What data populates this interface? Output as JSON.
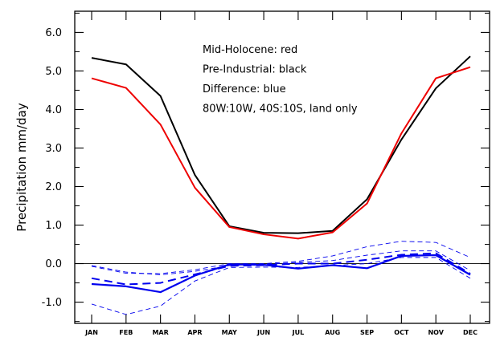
{
  "chart_data": {
    "type": "line",
    "title": "",
    "xlabel": "",
    "ylabel": "Precipitation  mm/day",
    "categories": [
      "JAN",
      "FEB",
      "MAR",
      "APR",
      "MAY",
      "JUN",
      "JUL",
      "AUG",
      "SEP",
      "OCT",
      "NOV",
      "DEC"
    ],
    "ylim": [
      -1.55,
      6.55
    ],
    "yticks": [
      -1.0,
      0.0,
      1.0,
      2.0,
      3.0,
      4.0,
      5.0,
      6.0
    ],
    "ytick_labels": [
      "-1.0",
      "0.0",
      "1.0",
      "2.0",
      "3.0",
      "4.0",
      "5.0",
      "6.0"
    ],
    "zero_line": true,
    "grid": false,
    "annotations": [
      "Mid-Holocene: red",
      "Pre-Industrial: black",
      "Difference: blue",
      "80W:10W, 40S:10S, land only"
    ],
    "series": [
      {
        "color": "#000000",
        "style": "solid",
        "width": 2.0,
        "values": [
          5.34,
          5.17,
          4.35,
          2.3,
          0.97,
          0.8,
          0.79,
          0.85,
          1.67,
          3.22,
          4.55,
          5.38
        ]
      },
      {
        "color": "#ee0000",
        "style": "solid",
        "width": 2.0,
        "values": [
          4.81,
          4.56,
          3.61,
          1.97,
          0.95,
          0.76,
          0.65,
          0.81,
          1.56,
          3.38,
          4.81,
          5.1
        ]
      },
      {
        "color": "#0000ee",
        "style": "solid",
        "width": 2.2,
        "values": [
          -0.53,
          -0.59,
          -0.74,
          -0.31,
          -0.02,
          -0.03,
          -0.13,
          -0.04,
          -0.12,
          0.2,
          0.22,
          -0.29
        ]
      },
      {
        "color": "#0000ee",
        "style": "dashed-heavy",
        "width": 2.0,
        "values": [
          -0.38,
          -0.54,
          -0.5,
          -0.28,
          -0.06,
          -0.04,
          0.0,
          0.0,
          0.1,
          0.23,
          0.27,
          -0.26
        ]
      },
      {
        "color": "#0000ee",
        "style": "dashed-light",
        "width": 0.9,
        "values": [
          -1.05,
          -1.32,
          -1.1,
          -0.45,
          -0.1,
          -0.09,
          -0.1,
          -0.05,
          0.0,
          0.16,
          0.16,
          -0.38
        ]
      },
      {
        "color": "#0000ee",
        "style": "dashed-light",
        "width": 0.9,
        "values": [
          -0.05,
          -0.22,
          -0.29,
          -0.2,
          -0.05,
          -0.02,
          0.03,
          0.08,
          0.22,
          0.33,
          0.33,
          -0.18
        ]
      },
      {
        "color": "#0000ee",
        "style": "dashed-light",
        "width": 0.9,
        "values": [
          -0.07,
          -0.25,
          -0.26,
          -0.16,
          0.0,
          0.0,
          0.06,
          0.2,
          0.44,
          0.58,
          0.55,
          0.16
        ]
      }
    ]
  }
}
